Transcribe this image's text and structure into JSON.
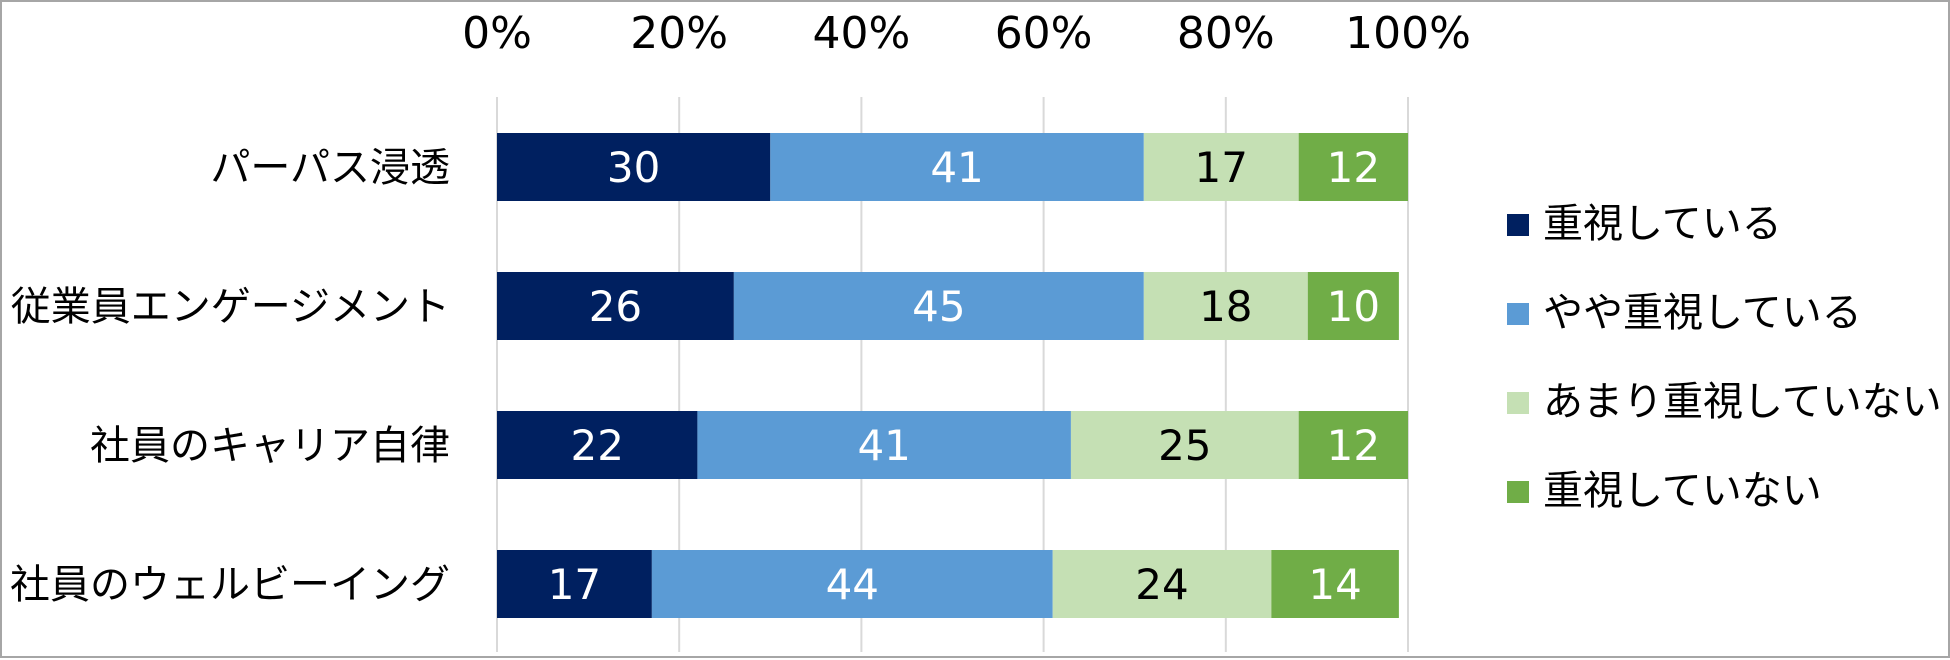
{
  "chart_data": {
    "type": "bar",
    "orientation": "horizontal",
    "stacked": true,
    "percent_axis": true,
    "x_ticks": [
      "0%",
      "20%",
      "40%",
      "60%",
      "80%",
      "100%"
    ],
    "xlim": [
      0,
      100
    ],
    "x_axis_position": "top",
    "grid": true,
    "legend_position": "right",
    "categories": [
      "パーパス浸透",
      "従業員エンゲージメント",
      "社員のキャリア自律",
      "社員のウェルビーイング"
    ],
    "series": [
      {
        "name": "重視している",
        "color": "#002060",
        "label_color": "#ffffff",
        "values": [
          30,
          26,
          22,
          17
        ]
      },
      {
        "name": "やや重視している",
        "color": "#5b9bd5",
        "label_color": "#ffffff",
        "values": [
          41,
          45,
          41,
          44
        ]
      },
      {
        "name": "あまり重視していない",
        "color": "#c5e0b4",
        "label_color": "#000000",
        "values": [
          17,
          18,
          25,
          24
        ]
      },
      {
        "name": "重視していない",
        "color": "#70ad47",
        "label_color": "#ffffff",
        "values": [
          12,
          10,
          12,
          14
        ]
      }
    ]
  }
}
